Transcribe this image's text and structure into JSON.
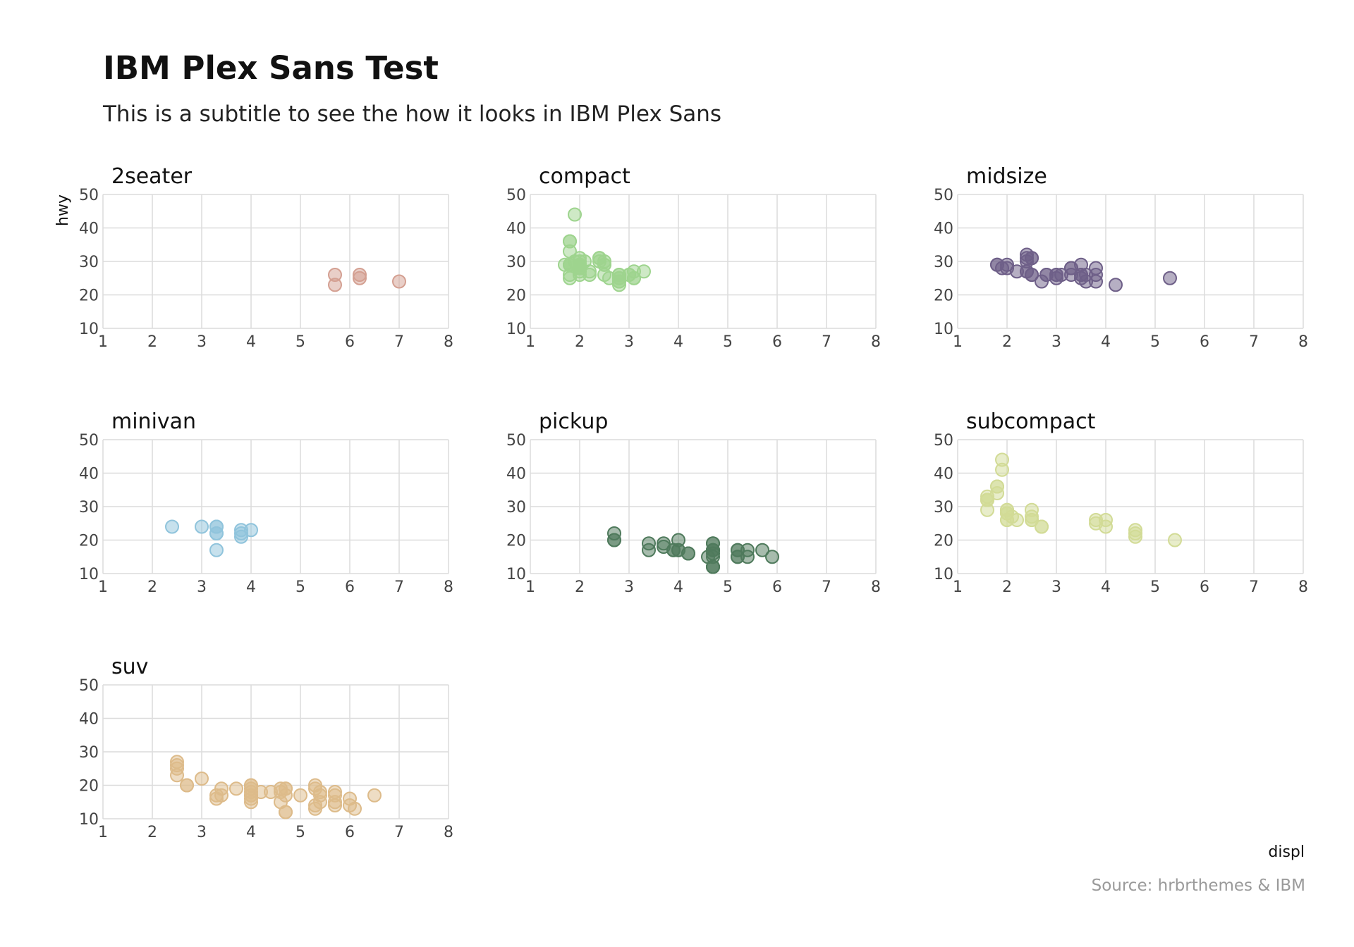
{
  "title": "IBM Plex Sans Test",
  "subtitle": "This is a subtitle to see the how it looks in IBM Plex Sans",
  "caption": "Source: hrbrthemes & IBM",
  "chart_data": {
    "type": "scatter",
    "xlabel": "displ",
    "ylabel": "hwy",
    "xlim": [
      1,
      8
    ],
    "ylim": [
      10,
      50
    ],
    "x_ticks": [
      1,
      2,
      3,
      4,
      5,
      6,
      7,
      8
    ],
    "y_ticks": [
      10,
      20,
      30,
      40,
      50
    ],
    "facets": [
      {
        "name": "2seater",
        "color": "#d4a092",
        "points": [
          [
            5.7,
            26
          ],
          [
            5.7,
            23
          ],
          [
            6.2,
            26
          ],
          [
            6.2,
            25
          ],
          [
            7.0,
            24
          ]
        ]
      },
      {
        "name": "compact",
        "color": "#9ed48e",
        "points": [
          [
            1.8,
            29
          ],
          [
            1.8,
            29
          ],
          [
            2.0,
            31
          ],
          [
            2.0,
            30
          ],
          [
            2.8,
            26
          ],
          [
            2.8,
            26
          ],
          [
            3.1,
            27
          ],
          [
            1.8,
            26
          ],
          [
            1.8,
            25
          ],
          [
            2.0,
            28
          ],
          [
            2.0,
            27
          ],
          [
            2.8,
            25
          ],
          [
            2.8,
            25
          ],
          [
            3.1,
            25
          ],
          [
            3.1,
            25
          ],
          [
            2.2,
            26
          ],
          [
            2.2,
            27
          ],
          [
            2.4,
            31
          ],
          [
            2.4,
            31
          ],
          [
            3.0,
            26
          ],
          [
            3.0,
            26
          ],
          [
            3.3,
            27
          ],
          [
            1.8,
            29
          ],
          [
            1.8,
            29
          ],
          [
            2.0,
            29
          ],
          [
            2.0,
            28
          ],
          [
            2.8,
            23
          ],
          [
            1.9,
            44
          ],
          [
            2.0,
            29
          ],
          [
            2.0,
            29
          ],
          [
            2.0,
            29
          ],
          [
            2.0,
            29
          ],
          [
            2.5,
            29
          ],
          [
            2.5,
            29
          ],
          [
            2.8,
            24
          ],
          [
            2.8,
            24
          ],
          [
            1.8,
            36
          ],
          [
            1.8,
            36
          ],
          [
            1.8,
            33
          ],
          [
            2.0,
            28
          ],
          [
            2.0,
            26
          ],
          [
            2.5,
            26
          ],
          [
            2.6,
            25
          ],
          [
            2.5,
            30
          ],
          [
            2.4,
            30
          ],
          [
            2.1,
            30
          ],
          [
            1.9,
            30
          ],
          [
            2.0,
            28
          ],
          [
            1.7,
            29
          ]
        ]
      },
      {
        "name": "midsize",
        "color": "#6e5f88",
        "points": [
          [
            2.4,
            27
          ],
          [
            2.4,
            30
          ],
          [
            3.1,
            26
          ],
          [
            3.5,
            29
          ],
          [
            3.6,
            26
          ],
          [
            2.4,
            27
          ],
          [
            3.0,
            26
          ],
          [
            3.3,
            26
          ],
          [
            3.3,
            28
          ],
          [
            3.8,
            26
          ],
          [
            3.8,
            24
          ],
          [
            3.8,
            28
          ],
          [
            2.5,
            26
          ],
          [
            2.5,
            26
          ],
          [
            3.5,
            26
          ],
          [
            3.5,
            26
          ],
          [
            3.0,
            26
          ],
          [
            3.0,
            25
          ],
          [
            3.5,
            25
          ],
          [
            3.3,
            28
          ],
          [
            1.8,
            29
          ],
          [
            1.8,
            29
          ],
          [
            2.0,
            28
          ],
          [
            2.0,
            29
          ],
          [
            2.8,
            26
          ],
          [
            2.8,
            26
          ],
          [
            3.6,
            24
          ],
          [
            2.4,
            31
          ],
          [
            2.4,
            32
          ],
          [
            2.5,
            31
          ],
          [
            2.5,
            31
          ],
          [
            4.2,
            23
          ],
          [
            5.3,
            25
          ],
          [
            2.7,
            24
          ],
          [
            2.2,
            27
          ],
          [
            1.9,
            28
          ]
        ]
      },
      {
        "name": "minivan",
        "color": "#90c4dc",
        "points": [
          [
            2.4,
            24
          ],
          [
            3.0,
            24
          ],
          [
            3.3,
            22
          ],
          [
            3.3,
            22
          ],
          [
            3.3,
            24
          ],
          [
            3.3,
            24
          ],
          [
            3.3,
            17
          ],
          [
            3.8,
            22
          ],
          [
            3.8,
            21
          ],
          [
            3.8,
            23
          ],
          [
            4.0,
            23
          ]
        ]
      },
      {
        "name": "pickup",
        "color": "#4f7a5c",
        "points": [
          [
            2.7,
            20
          ],
          [
            2.7,
            20
          ],
          [
            2.7,
            22
          ],
          [
            3.4,
            17
          ],
          [
            3.4,
            19
          ],
          [
            4.0,
            17
          ],
          [
            4.7,
            12
          ],
          [
            4.7,
            17
          ],
          [
            4.7,
            19
          ],
          [
            5.2,
            17
          ],
          [
            5.2,
            17
          ],
          [
            5.7,
            17
          ],
          [
            5.9,
            15
          ],
          [
            4.7,
            17
          ],
          [
            4.7,
            12
          ],
          [
            4.7,
            12
          ],
          [
            4.7,
            16
          ],
          [
            4.7,
            17
          ],
          [
            5.2,
            15
          ],
          [
            5.2,
            15
          ],
          [
            5.4,
            17
          ],
          [
            5.4,
            15
          ],
          [
            3.7,
            19
          ],
          [
            3.7,
            18
          ],
          [
            3.9,
            17
          ],
          [
            3.9,
            17
          ],
          [
            4.2,
            16
          ],
          [
            4.2,
            16
          ],
          [
            4.0,
            20
          ],
          [
            4.0,
            17
          ],
          [
            4.6,
            15
          ],
          [
            4.7,
            15
          ],
          [
            4.7,
            19
          ]
        ]
      },
      {
        "name": "subcompact",
        "color": "#d2db96",
        "points": [
          [
            3.8,
            26
          ],
          [
            3.8,
            25
          ],
          [
            4.0,
            26
          ],
          [
            4.0,
            24
          ],
          [
            4.6,
            21
          ],
          [
            4.6,
            22
          ],
          [
            4.6,
            23
          ],
          [
            5.4,
            20
          ],
          [
            1.6,
            33
          ],
          [
            1.6,
            32
          ],
          [
            1.6,
            32
          ],
          [
            1.6,
            29
          ],
          [
            1.6,
            32
          ],
          [
            1.8,
            34
          ],
          [
            1.8,
            36
          ],
          [
            1.8,
            36
          ],
          [
            2.0,
            29
          ],
          [
            1.9,
            44
          ],
          [
            1.9,
            41
          ],
          [
            2.0,
            29
          ],
          [
            2.0,
            26
          ],
          [
            2.0,
            28
          ],
          [
            2.5,
            29
          ],
          [
            2.5,
            27
          ],
          [
            2.5,
            26
          ],
          [
            2.5,
            26
          ],
          [
            2.7,
            24
          ],
          [
            2.7,
            24
          ],
          [
            2.0,
            28
          ],
          [
            2.2,
            26
          ],
          [
            2.0,
            26
          ],
          [
            2.1,
            27
          ]
        ]
      },
      {
        "name": "suv",
        "color": "#ddbb8a",
        "points": [
          [
            2.5,
            27
          ],
          [
            2.5,
            25
          ],
          [
            2.5,
            26
          ],
          [
            2.5,
            23
          ],
          [
            2.7,
            20
          ],
          [
            2.7,
            20
          ],
          [
            3.0,
            22
          ],
          [
            3.3,
            17
          ],
          [
            3.3,
            16
          ],
          [
            3.4,
            19
          ],
          [
            3.4,
            17
          ],
          [
            3.7,
            19
          ],
          [
            4.0,
            17
          ],
          [
            4.0,
            17
          ],
          [
            4.0,
            20
          ],
          [
            4.0,
            15
          ],
          [
            4.0,
            18
          ],
          [
            4.0,
            19
          ],
          [
            4.2,
            18
          ],
          [
            4.4,
            18
          ],
          [
            4.6,
            15
          ],
          [
            4.6,
            18
          ],
          [
            4.7,
            12
          ],
          [
            4.7,
            12
          ],
          [
            4.7,
            19
          ],
          [
            4.7,
            17
          ],
          [
            4.7,
            19
          ],
          [
            5.0,
            17
          ],
          [
            5.3,
            14
          ],
          [
            5.3,
            13
          ],
          [
            5.3,
            20
          ],
          [
            5.4,
            17
          ],
          [
            5.4,
            15
          ],
          [
            5.4,
            18
          ],
          [
            5.7,
            17
          ],
          [
            5.7,
            14
          ],
          [
            5.7,
            15
          ],
          [
            5.7,
            18
          ],
          [
            6.0,
            14
          ],
          [
            6.0,
            16
          ],
          [
            6.1,
            13
          ],
          [
            6.5,
            17
          ],
          [
            4.0,
            20
          ],
          [
            4.6,
            19
          ],
          [
            5.3,
            19
          ],
          [
            4.0,
            16
          ]
        ]
      }
    ]
  }
}
